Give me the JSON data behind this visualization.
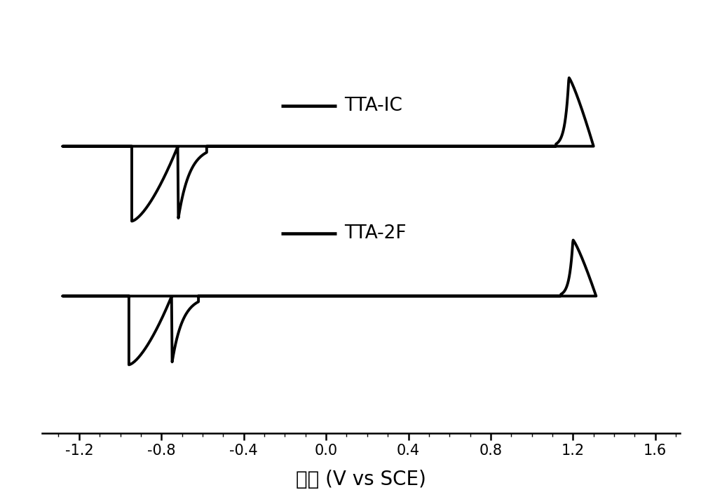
{
  "xlabel": "电压 (V vs SCE)",
  "xlabel_fontsize": 20,
  "tick_fontsize": 15,
  "xlim": [
    -1.38,
    1.72
  ],
  "xticks": [
    -1.2,
    -0.8,
    -0.4,
    0.0,
    0.4,
    0.8,
    1.2,
    1.6
  ],
  "xtick_labels": [
    "-1.2",
    "-0.8",
    "-0.4",
    "0.0",
    "0.4",
    "0.8",
    "1.2",
    "1.6"
  ],
  "line_color": "#000000",
  "line_width": 2.8,
  "legend_labels": [
    "TTA-IC",
    "TTA-2F"
  ],
  "legend_fontsize": 19,
  "background_color": "#ffffff",
  "tta_ic_baseline": 0.3,
  "tta_2f_baseline": -0.18,
  "ylim": [
    -0.62,
    0.72
  ]
}
